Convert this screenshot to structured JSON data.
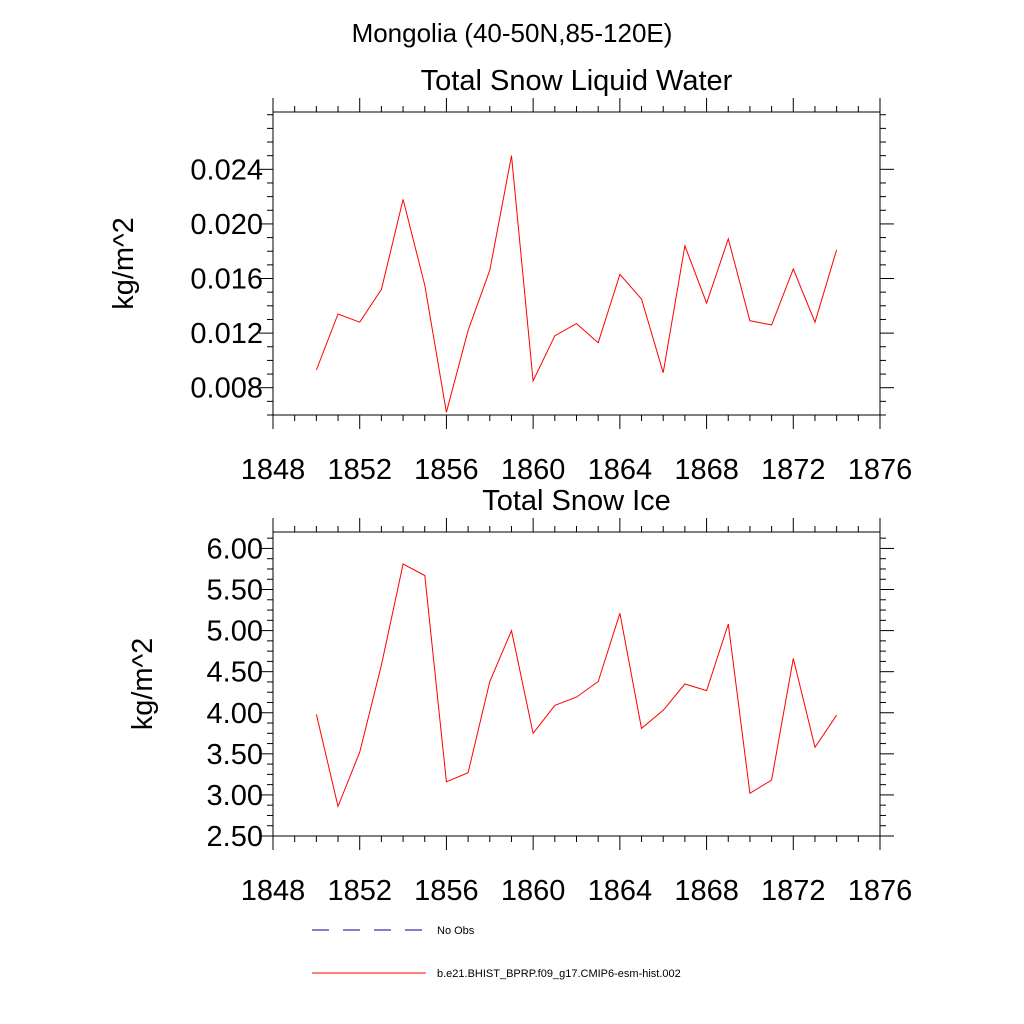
{
  "figure_title": "Mongolia (40-50N,85-120E)",
  "colors": {
    "model": "#ff0000",
    "obs": "#00008b",
    "axis": "#000000"
  },
  "legend": [
    {
      "label": "No Obs",
      "style": "dashed",
      "color": "#00008b"
    },
    {
      "label": "b.e21.BHIST_BPRP.f09_g17.CMIP6-esm-hist.002",
      "style": "solid",
      "color": "#ff0000"
    }
  ],
  "chart_data": [
    {
      "type": "line",
      "title": "Total Snow Liquid Water",
      "xlabel": "",
      "ylabel": "kg/m^2",
      "xlim": [
        1848,
        1876
      ],
      "ylim": [
        0.006,
        0.0282
      ],
      "xticks": [
        1848,
        1852,
        1856,
        1860,
        1864,
        1868,
        1872,
        1876
      ],
      "yticks": [
        0.008,
        0.012,
        0.016,
        0.02,
        0.024
      ],
      "ytick_labels": [
        "0.008",
        "0.012",
        "0.016",
        "0.020",
        "0.024"
      ],
      "grid": false,
      "series": [
        {
          "name": "b.e21.BHIST_BPRP.f09_g17.CMIP6-esm-hist.002",
          "color": "#ff0000",
          "x": [
            1850,
            1851,
            1852,
            1853,
            1854,
            1855,
            1856,
            1857,
            1858,
            1859,
            1860,
            1861,
            1862,
            1863,
            1864,
            1865,
            1866,
            1867,
            1868,
            1869,
            1870,
            1871,
            1872,
            1873,
            1874
          ],
          "y": [
            0.0093,
            0.0134,
            0.0128,
            0.0152,
            0.0218,
            0.0155,
            0.0062,
            0.0122,
            0.0166,
            0.025,
            0.0085,
            0.0118,
            0.0127,
            0.0113,
            0.0163,
            0.0145,
            0.0091,
            0.0184,
            0.0142,
            0.0189,
            0.0129,
            0.0126,
            0.0167,
            0.0128,
            0.0181
          ]
        }
      ]
    },
    {
      "type": "line",
      "title": "Total Snow Ice",
      "xlabel": "",
      "ylabel": "kg/m^2",
      "xlim": [
        1848,
        1876
      ],
      "ylim": [
        2.5,
        6.2
      ],
      "xticks": [
        1848,
        1852,
        1856,
        1860,
        1864,
        1868,
        1872,
        1876
      ],
      "yticks": [
        2.5,
        3.0,
        3.5,
        4.0,
        4.5,
        5.0,
        5.5,
        6.0
      ],
      "ytick_labels": [
        "2.50",
        "3.00",
        "3.50",
        "4.00",
        "4.50",
        "5.00",
        "5.50",
        "6.00"
      ],
      "grid": false,
      "series": [
        {
          "name": "b.e21.BHIST_BPRP.f09_g17.CMIP6-esm-hist.002",
          "color": "#ff0000",
          "x": [
            1850,
            1851,
            1852,
            1853,
            1854,
            1855,
            1856,
            1857,
            1858,
            1859,
            1860,
            1861,
            1862,
            1863,
            1864,
            1865,
            1866,
            1867,
            1868,
            1869,
            1870,
            1871,
            1872,
            1873,
            1874
          ],
          "y": [
            3.98,
            2.86,
            3.52,
            4.58,
            5.81,
            5.67,
            3.16,
            3.27,
            4.38,
            5.0,
            3.75,
            4.09,
            4.19,
            4.38,
            5.21,
            3.81,
            4.03,
            4.35,
            4.27,
            5.08,
            3.02,
            3.18,
            4.66,
            3.58,
            3.97
          ]
        }
      ]
    }
  ]
}
